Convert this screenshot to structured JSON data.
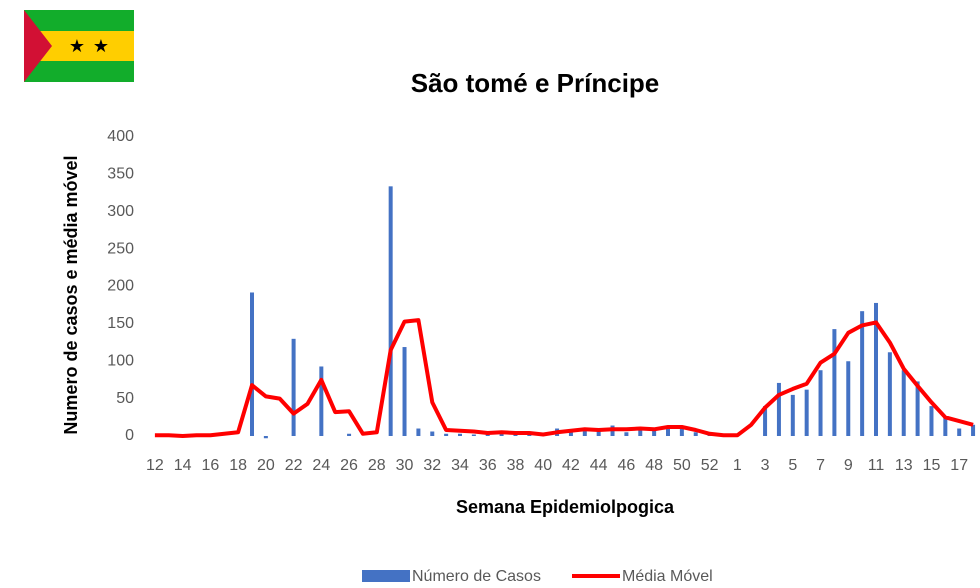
{
  "chart_data": {
    "type": "bar+line",
    "title": "São tomé e Príncipe",
    "x_label": "Semana Epidemiolpogica",
    "y_label": "Numero de casos e média móvel",
    "categories": [
      "12",
      null,
      "14",
      null,
      "16",
      null,
      "18",
      null,
      "20",
      null,
      "22",
      null,
      "24",
      null,
      "26",
      null,
      "28",
      null,
      "30",
      null,
      "32",
      null,
      "34",
      null,
      "36",
      null,
      "38",
      null,
      "40",
      null,
      "42",
      null,
      "44",
      null,
      "46",
      null,
      "48",
      null,
      "50",
      null,
      "52",
      null,
      "1",
      null,
      "3",
      null,
      "5",
      null,
      "7",
      null,
      "9",
      null,
      "11",
      null,
      "13",
      null,
      "15",
      null,
      "17",
      null
    ],
    "series": [
      {
        "name": "Número de Casos",
        "kind": "bar",
        "color": "#4472c4",
        "values": [
          0,
          0,
          0,
          0,
          0,
          0,
          0,
          192,
          -3,
          0,
          130,
          0,
          93,
          0,
          3,
          0,
          0,
          334,
          119,
          10,
          6,
          3,
          3,
          2,
          2,
          3,
          2,
          2,
          1,
          10,
          8,
          8,
          8,
          14,
          5,
          10,
          8,
          10,
          12,
          5,
          2,
          2,
          0,
          0,
          40,
          71,
          55,
          62,
          88,
          143,
          100,
          167,
          178,
          112,
          88,
          73,
          40,
          25,
          10,
          15
        ]
      },
      {
        "name": "Média Móvel",
        "kind": "line",
        "color": "#ff0000",
        "values": [
          1,
          1,
          0,
          1,
          1,
          3,
          5,
          68,
          53,
          50,
          30,
          43,
          75,
          32,
          33,
          3,
          5,
          115,
          153,
          155,
          45,
          8,
          7,
          6,
          4,
          5,
          4,
          4,
          2,
          5,
          7,
          9,
          8,
          9,
          9,
          10,
          9,
          12,
          12,
          8,
          3,
          1,
          1,
          15,
          38,
          55,
          63,
          70,
          98,
          110,
          138,
          148,
          152,
          125,
          90,
          67,
          45,
          25,
          20,
          15
        ]
      }
    ],
    "ylim": [
      0,
      400
    ],
    "yticks": [
      0,
      50,
      100,
      150,
      200,
      250,
      300,
      350,
      400
    ],
    "grid": false,
    "legend": "bottom"
  }
}
